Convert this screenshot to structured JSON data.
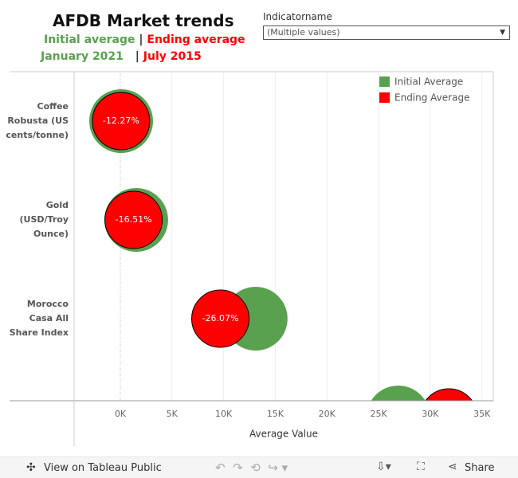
{
  "chart_data": {
    "type": "dot",
    "title": "AFDB Market trends",
    "subtitle": {
      "initial": "Initial average",
      "separator": "|",
      "ending": "Ending average",
      "initial_date": "January 2021",
      "date_separator": "|",
      "ending_date": "July 2015"
    },
    "filter": {
      "label": "Indicatorname",
      "value": "(Multiple values)"
    },
    "categories": [
      "Coffee Robusta (US cents/tonne)",
      "Gold (USD/Troy Ounce)",
      "Morocco Casa All Share Index",
      null
    ],
    "series": [
      {
        "name": "Initial Average",
        "color": "#59a14f",
        "values": [
          80,
          1540,
          13100,
          26900
        ]
      },
      {
        "name": "Ending Average",
        "color": "#ff0000",
        "values": [
          70,
          1286,
          9685,
          31800
        ]
      }
    ],
    "change": {
      "values": [
        -12.27,
        -16.51,
        -26.07,
        null
      ],
      "value_labels": [
        "-12.27%",
        "-16.51%",
        "-26.07%",
        null
      ]
    },
    "xlabel": "Average Value",
    "xlim": [
      -4470,
      36100
    ],
    "xticks": [
      {
        "value": 0,
        "label": "0K"
      },
      {
        "value": 5000,
        "label": "5K"
      },
      {
        "value": 10000,
        "label": "10K"
      },
      {
        "value": 15000,
        "label": "15K"
      },
      {
        "value": 20000,
        "label": "20K"
      },
      {
        "value": 25000,
        "label": "25K"
      },
      {
        "value": 30000,
        "label": "30K"
      },
      {
        "value": 35000,
        "label": "35K"
      }
    ],
    "grid": true,
    "legend": "top-right",
    "toolbar": {
      "view": "View on Tableau Public",
      "share": "Share"
    }
  }
}
